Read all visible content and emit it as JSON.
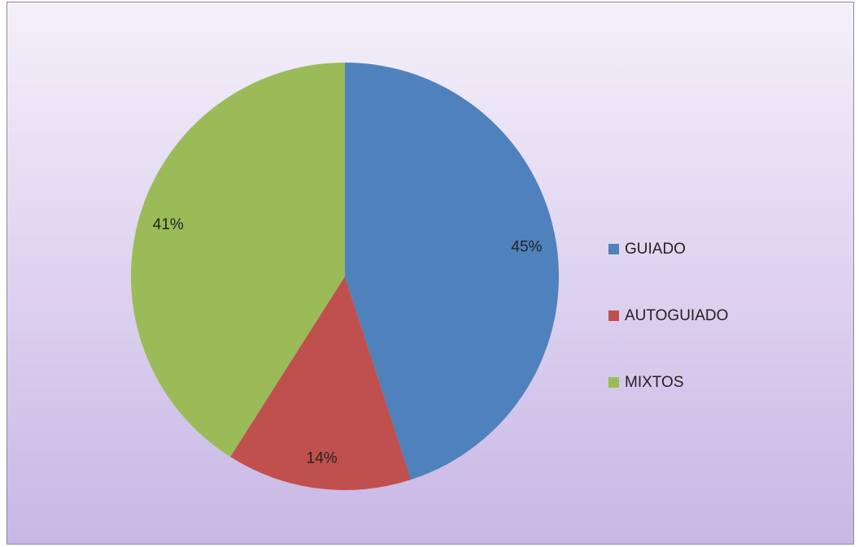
{
  "chart_data": {
    "type": "pie",
    "categories": [
      "GUIADO",
      "AUTOGUIADO",
      "MIXTOS"
    ],
    "values": [
      45,
      14,
      41
    ],
    "value_labels": [
      "45%",
      "14%",
      "41%"
    ],
    "colors": [
      "#4f81bd",
      "#c0504d",
      "#9bbb59"
    ],
    "legend": "right"
  }
}
